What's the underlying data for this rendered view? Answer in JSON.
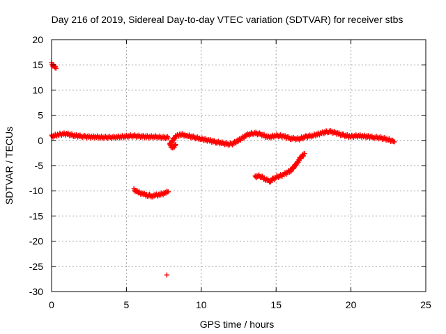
{
  "chart_data": {
    "type": "scatter",
    "title": "Day 216 of 2019, Sidereal Day-to-day VTEC variation (SDTVAR) for receiver stbs",
    "xlabel": "GPS time / hours",
    "ylabel": "SDTVAR / TECUs",
    "xlim": [
      0,
      25
    ],
    "ylim": [
      -30,
      20
    ],
    "xticks": [
      0,
      5,
      10,
      15,
      20,
      25
    ],
    "yticks": [
      20,
      15,
      10,
      5,
      0,
      -5,
      -10,
      -15,
      -20,
      -25,
      -30
    ],
    "grid": true,
    "marker": "+",
    "series": [
      {
        "name": "SDTVAR",
        "color": "#ff0000",
        "segments": [
          {
            "x": [
              0.0,
              0.1,
              0.2,
              0.3
            ],
            "y": [
              15.2,
              14.9,
              14.6,
              14.3
            ]
          },
          {
            "x": [
              0.0,
              0.5,
              1.0,
              1.5,
              2.0,
              2.5,
              3.0,
              3.5,
              4.0,
              4.5,
              5.0,
              5.5,
              6.0,
              6.5,
              7.0,
              7.5,
              7.8
            ],
            "y": [
              0.8,
              1.2,
              1.3,
              1.0,
              0.8,
              0.7,
              0.7,
              0.6,
              0.6,
              0.7,
              0.8,
              0.9,
              0.8,
              0.7,
              0.7,
              0.6,
              0.5
            ]
          },
          {
            "x": [
              7.9,
              8.1,
              8.3,
              8.6,
              9.0,
              9.5,
              10.0,
              10.5,
              11.0,
              11.5,
              12.0,
              12.5,
              13.0,
              13.5,
              14.0,
              14.5,
              15.0,
              15.5,
              16.0,
              16.5,
              17.0,
              17.5,
              18.0,
              18.5,
              19.0,
              19.5,
              20.0,
              20.5,
              21.0,
              21.5,
              22.0,
              22.5,
              22.9
            ],
            "y": [
              -0.8,
              0.0,
              0.8,
              1.2,
              1.0,
              0.6,
              0.3,
              0.0,
              -0.3,
              -0.6,
              -0.8,
              0.0,
              1.0,
              1.5,
              1.2,
              0.6,
              1.0,
              0.8,
              0.4,
              0.3,
              0.7,
              1.0,
              1.4,
              1.8,
              1.5,
              1.0,
              0.8,
              0.9,
              0.8,
              0.6,
              0.5,
              0.2,
              -0.3
            ]
          },
          {
            "x": [
              5.5,
              5.8,
              6.1,
              6.4,
              6.7,
              7.0,
              7.3,
              7.6,
              7.8
            ],
            "y": [
              -9.8,
              -10.3,
              -10.6,
              -10.9,
              -11.0,
              -10.9,
              -10.7,
              -10.4,
              -10.2
            ]
          },
          {
            "x": [
              7.7
            ],
            "y": [
              -26.7
            ]
          },
          {
            "x": [
              7.9,
              8.1,
              8.3
            ],
            "y": [
              -1.0,
              -1.4,
              -0.8
            ]
          },
          {
            "x": [
              13.6,
              13.8,
              14.0,
              14.3,
              14.6,
              14.8,
              15.0,
              15.5,
              16.0,
              16.3,
              16.6,
              16.9
            ],
            "y": [
              -7.3,
              -7.0,
              -7.2,
              -7.7,
              -8.1,
              -7.7,
              -7.3,
              -6.8,
              -5.9,
              -4.9,
              -3.6,
              -2.6
            ]
          }
        ]
      }
    ]
  }
}
